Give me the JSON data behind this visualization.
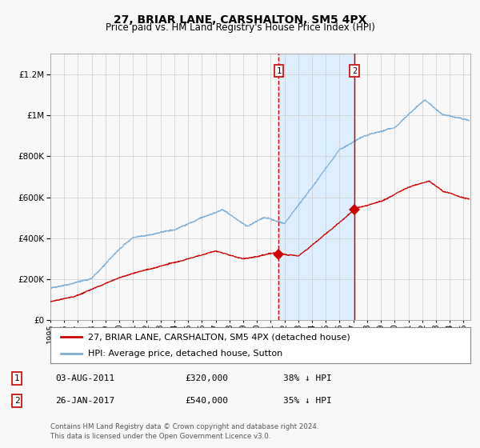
{
  "title": "27, BRIAR LANE, CARSHALTON, SM5 4PX",
  "subtitle": "Price paid vs. HM Land Registry's House Price Index (HPI)",
  "ylim": [
    0,
    1300000
  ],
  "xlim_start": 1995.0,
  "xlim_end": 2025.5,
  "yticks": [
    0,
    200000,
    400000,
    600000,
    800000,
    1000000,
    1200000
  ],
  "ytick_labels": [
    "£0",
    "£200K",
    "£400K",
    "£600K",
    "£800K",
    "£1M",
    "£1.2M"
  ],
  "transaction1_date": 2011.58,
  "transaction1_price": 320000,
  "transaction1_label": "1",
  "transaction2_date": 2017.07,
  "transaction2_price": 540000,
  "transaction2_label": "2",
  "legend_entry1": "27, BRIAR LANE, CARSHALTON, SM5 4PX (detached house)",
  "legend_entry2": "HPI: Average price, detached house, Sutton",
  "table_row1": [
    "1",
    "03-AUG-2011",
    "£320,000",
    "38% ↓ HPI"
  ],
  "table_row2": [
    "2",
    "26-JAN-2017",
    "£540,000",
    "35% ↓ HPI"
  ],
  "footer1": "Contains HM Land Registry data © Crown copyright and database right 2024.",
  "footer2": "This data is licensed under the Open Government Licence v3.0.",
  "red_line_color": "#cc0000",
  "blue_line_color": "#7aaed6",
  "shade_color": "#ddeeff",
  "grid_color": "#cccccc",
  "bg_color": "#f8f8f8",
  "title_fontsize": 10,
  "subtitle_fontsize": 8.5,
  "tick_fontsize": 7.5,
  "legend_fontsize": 8,
  "table_fontsize": 8
}
